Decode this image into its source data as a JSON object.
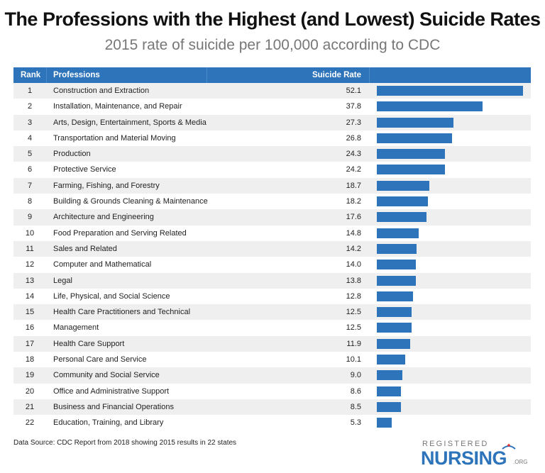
{
  "chart_data": {
    "type": "bar",
    "title": "The Professions with the Highest (and Lowest) Suicide Rates",
    "subtitle": "2015 rate of suicide per 100,000 according to CDC",
    "columns": [
      "Rank",
      "Professions",
      "Suicide Rate"
    ],
    "orientation": "horizontal",
    "bar_color": "#2e74bb",
    "rows": [
      {
        "rank": "1",
        "profession": "Construction and Extraction",
        "rate": 52.1
      },
      {
        "rank": "2",
        "profession": "Installation, Maintenance, and Repair",
        "rate": 37.8
      },
      {
        "rank": "3",
        "profession": "Arts, Design, Entertainment, Sports & Media",
        "rate": 27.3
      },
      {
        "rank": "4",
        "profession": "Transportation and Material Moving",
        "rate": 26.8
      },
      {
        "rank": "5",
        "profession": "Production",
        "rate": 24.3
      },
      {
        "rank": "6",
        "profession": "Protective Service",
        "rate": 24.2
      },
      {
        "rank": "7",
        "profession": "Farming, Fishing, and Forestry",
        "rate": 18.7
      },
      {
        "rank": "8",
        "profession": "Building & Grounds Cleaning & Maintenance",
        "rate": 18.2
      },
      {
        "rank": "9",
        "profession": "Architecture and Engineering",
        "rate": 17.6
      },
      {
        "rank": "10",
        "profession": "Food Preparation and Serving Related",
        "rate": 14.8
      },
      {
        "rank": "11",
        "profession": "Sales and Related",
        "rate": 14.2
      },
      {
        "rank": "12",
        "profession": "Computer and Mathematical",
        "rate": 14.0
      },
      {
        "rank": "13",
        "profession": "Legal",
        "rate": 13.8
      },
      {
        "rank": "14",
        "profession": "Life, Physical, and Social Science",
        "rate": 12.8
      },
      {
        "rank": "15",
        "profession": "Health Care Practitioners and Technical",
        "rate": 12.5
      },
      {
        "rank": "16",
        "profession": "Management",
        "rate": 12.5
      },
      {
        "rank": "17",
        "profession": "Health Care Support",
        "rate": 11.9
      },
      {
        "rank": "18",
        "profession": "Personal Care and Service",
        "rate": 10.1
      },
      {
        "rank": "19",
        "profession": "Community and Social Service",
        "rate": 9.0
      },
      {
        "rank": "20",
        "profession": "Office and Administrative Support",
        "rate": 8.6
      },
      {
        "rank": "21",
        "profession": "Business and Financial Operations",
        "rate": 8.5
      },
      {
        "rank": "22",
        "profession": "Education, Training, and Library",
        "rate": 5.3
      }
    ],
    "source": "Data Source: CDC Report from 2018 showing 2015 results in 22 states"
  },
  "logo": {
    "line1": "REGISTERED",
    "line2": "NURSING",
    "suffix": ".ORG"
  }
}
